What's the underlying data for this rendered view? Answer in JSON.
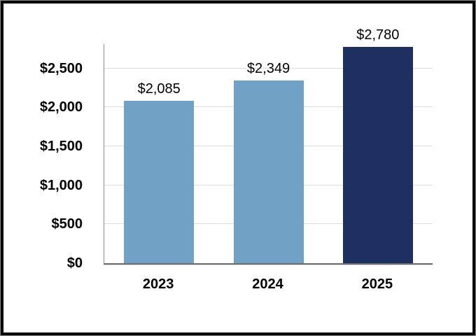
{
  "chart_data": {
    "type": "bar",
    "categories": [
      "2023",
      "2024",
      "2025"
    ],
    "values": [
      2085,
      2349,
      2780
    ],
    "value_labels": [
      "$2,085",
      "$2,349",
      "$2,780"
    ],
    "series": [
      {
        "name": "annual-value",
        "values": [
          2085,
          2349,
          2780
        ]
      }
    ],
    "title": "",
    "xlabel": "",
    "ylabel": "",
    "ylim": [
      0,
      2812
    ],
    "yticks": [
      0,
      500,
      1000,
      1500,
      2000,
      2500
    ],
    "ytick_labels": [
      "$0",
      "$500",
      "$1,000",
      "$1,500",
      "$2,000",
      "$2,500"
    ],
    "grid": true,
    "legend_position": "none",
    "bar_colors": [
      "#6FA2C4",
      "#6FA2C4",
      "#1E3060"
    ]
  },
  "colors": {
    "bar_light_blue": "#6FA2C4",
    "bar_dark_navy": "#1E3060",
    "gridline": "#dcdcdc",
    "axis_line": "#8a8a8a",
    "baseline": "#6e6e6e",
    "frame_border": "#000000",
    "frame_outer_edge": "#8c8c8c",
    "text": "#000000",
    "background": "#ffffff"
  }
}
